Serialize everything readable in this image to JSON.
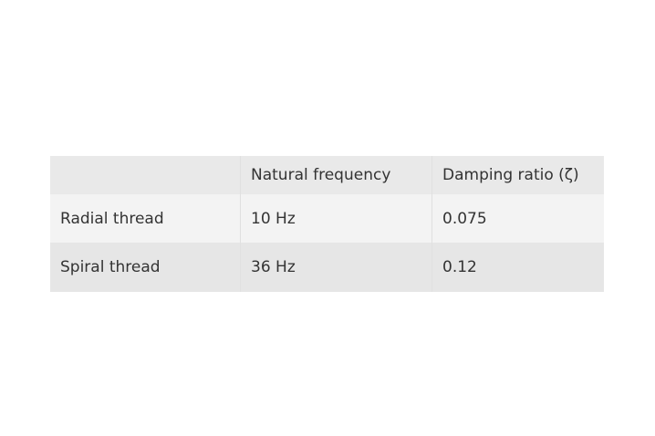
{
  "table": {
    "headers": [
      "",
      "Natural frequency",
      "Damping ratio (ζ)"
    ],
    "rows": [
      [
        "Radial thread",
        "10 Hz",
        "0.075"
      ],
      [
        "Spiral thread",
        "36 Hz",
        "0.12"
      ]
    ]
  }
}
